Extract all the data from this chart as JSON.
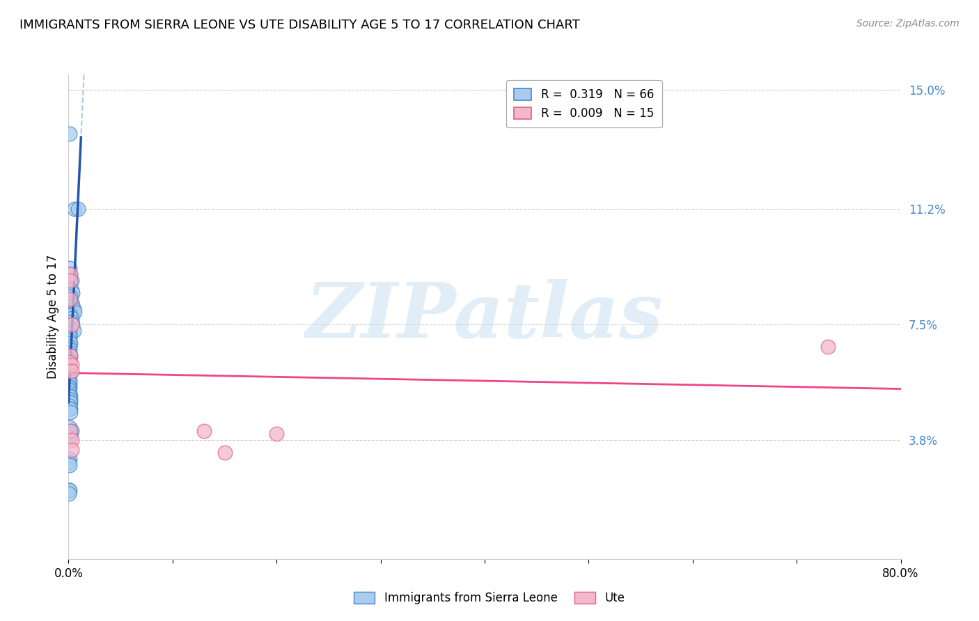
{
  "title": "IMMIGRANTS FROM SIERRA LEONE VS UTE DISABILITY AGE 5 TO 17 CORRELATION CHART",
  "source": "Source: ZipAtlas.com",
  "ylabel": "Disability Age 5 to 17",
  "xmin": 0.0,
  "xmax": 0.8,
  "ymin": 0.0,
  "ymax": 0.155,
  "yticks": [
    0.0,
    0.038,
    0.075,
    0.112,
    0.15
  ],
  "ytick_labels": [
    "",
    "3.8%",
    "7.5%",
    "11.2%",
    "15.0%"
  ],
  "watermark_text": "ZIPatlas",
  "legend_label1_R": "0.319",
  "legend_label1_N": "66",
  "legend_label2_R": "0.009",
  "legend_label2_N": "15",
  "bottom_legend": [
    "Immigrants from Sierra Leone",
    "Ute"
  ],
  "blue_face_color": "#aaccee",
  "blue_edge_color": "#4488cc",
  "pink_face_color": "#f4b8cc",
  "pink_edge_color": "#e06080",
  "blue_line_color": "#2255aa",
  "pink_line_color": "#ee4488",
  "blue_dash_color": "#99bbdd",
  "ytick_color": "#4488cc",
  "grid_color": "#cccccc",
  "background_color": "#ffffff",
  "blue_scatter": [
    [
      0.0008,
      0.136
    ],
    [
      0.006,
      0.112
    ],
    [
      0.009,
      0.112
    ],
    [
      0.001,
      0.093
    ],
    [
      0.002,
      0.091
    ],
    [
      0.003,
      0.089
    ],
    [
      0.003,
      0.086
    ],
    [
      0.004,
      0.085
    ],
    [
      0.002,
      0.084
    ],
    [
      0.003,
      0.082
    ],
    [
      0.004,
      0.081
    ],
    [
      0.005,
      0.08
    ],
    [
      0.002,
      0.079
    ],
    [
      0.006,
      0.079
    ],
    [
      0.002,
      0.078
    ],
    [
      0.003,
      0.077
    ],
    [
      0.003,
      0.076
    ],
    [
      0.004,
      0.075
    ],
    [
      0.001,
      0.074
    ],
    [
      0.002,
      0.073
    ],
    [
      0.005,
      0.073
    ],
    [
      0.001,
      0.072
    ],
    [
      0.001,
      0.071
    ],
    [
      0.001,
      0.07
    ],
    [
      0.002,
      0.069
    ],
    [
      0.001,
      0.068
    ],
    [
      0.001,
      0.067
    ],
    [
      0.001,
      0.066
    ],
    [
      0.001,
      0.065
    ],
    [
      0.002,
      0.065
    ],
    [
      0.001,
      0.064
    ],
    [
      0.001,
      0.063
    ],
    [
      0.001,
      0.062
    ],
    [
      0.001,
      0.061
    ],
    [
      0.001,
      0.06
    ],
    [
      0.001,
      0.059
    ],
    [
      0.001,
      0.059
    ],
    [
      0.0005,
      0.058
    ],
    [
      0.001,
      0.057
    ],
    [
      0.0005,
      0.056
    ],
    [
      0.001,
      0.056
    ],
    [
      0.001,
      0.055
    ],
    [
      0.0005,
      0.055
    ],
    [
      0.0005,
      0.054
    ],
    [
      0.0005,
      0.054
    ],
    [
      0.001,
      0.053
    ],
    [
      0.002,
      0.052
    ],
    [
      0.001,
      0.052
    ],
    [
      0.001,
      0.051
    ],
    [
      0.002,
      0.051
    ],
    [
      0.001,
      0.05
    ],
    [
      0.002,
      0.05
    ],
    [
      0.001,
      0.049
    ],
    [
      0.002,
      0.048
    ],
    [
      0.001,
      0.048
    ],
    [
      0.002,
      0.047
    ],
    [
      0.001,
      0.042
    ],
    [
      0.003,
      0.041
    ],
    [
      0.002,
      0.04
    ],
    [
      0.002,
      0.039
    ],
    [
      0.001,
      0.032
    ],
    [
      0.0005,
      0.031
    ],
    [
      0.001,
      0.03
    ],
    [
      0.0005,
      0.022
    ],
    [
      0.001,
      0.022
    ],
    [
      0.0005,
      0.021
    ]
  ],
  "pink_scatter": [
    [
      0.002,
      0.091
    ],
    [
      0.002,
      0.089
    ],
    [
      0.001,
      0.083
    ],
    [
      0.003,
      0.075
    ],
    [
      0.002,
      0.065
    ],
    [
      0.001,
      0.063
    ],
    [
      0.003,
      0.062
    ],
    [
      0.003,
      0.06
    ],
    [
      0.73,
      0.068
    ],
    [
      0.002,
      0.041
    ],
    [
      0.13,
      0.041
    ],
    [
      0.003,
      0.038
    ],
    [
      0.2,
      0.04
    ],
    [
      0.003,
      0.035
    ],
    [
      0.15,
      0.034
    ]
  ]
}
